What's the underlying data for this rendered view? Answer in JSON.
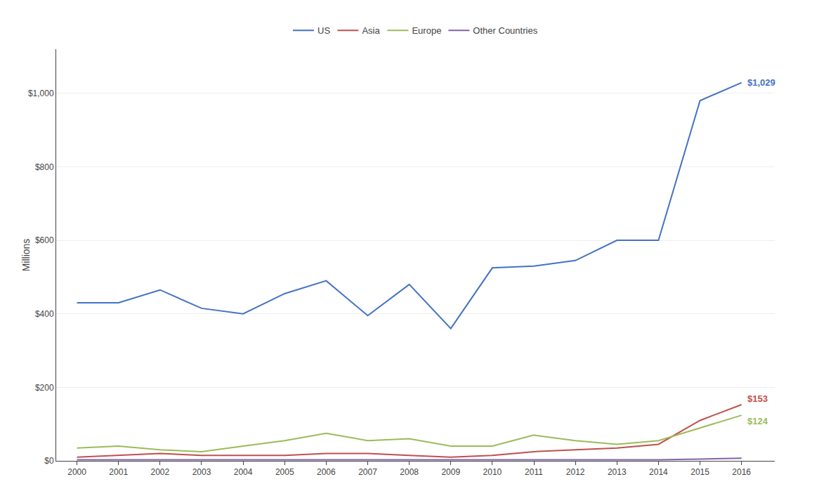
{
  "chart_data": {
    "type": "line",
    "y_label": "Millions",
    "x": [
      2000,
      2001,
      2002,
      2003,
      2004,
      2005,
      2006,
      2007,
      2008,
      2009,
      2010,
      2011,
      2012,
      2013,
      2014,
      2015,
      2016
    ],
    "series": [
      {
        "name": "US",
        "color": "#4472C4",
        "values": [
          430,
          430,
          465,
          415,
          400,
          455,
          490,
          395,
          480,
          360,
          525,
          530,
          545,
          600,
          600,
          980,
          1029
        ]
      },
      {
        "name": "Asia",
        "color": "#C0504D",
        "values": [
          10,
          15,
          20,
          15,
          15,
          15,
          20,
          20,
          15,
          10,
          15,
          25,
          30,
          35,
          45,
          110,
          153
        ]
      },
      {
        "name": "Europe",
        "color": "#9BBB59",
        "values": [
          35,
          40,
          30,
          25,
          40,
          55,
          75,
          55,
          60,
          40,
          40,
          70,
          55,
          45,
          55,
          90,
          124
        ]
      },
      {
        "name": "Other Countries",
        "color": "#8064A2",
        "values": [
          3,
          3,
          3,
          3,
          3,
          3,
          3,
          3,
          3,
          3,
          3,
          3,
          3,
          3,
          3,
          5,
          7
        ]
      }
    ],
    "annotations": [
      {
        "text": "$1,029",
        "x": 2016,
        "y": 1029,
        "color": "#4472C4"
      },
      {
        "text": "$153",
        "x": 2016,
        "y": 153,
        "color": "#C0504D"
      },
      {
        "text": "$124",
        "x": 2016,
        "y": 124,
        "color": "#9BBB59"
      }
    ],
    "xlim": [
      1999.5,
      2016.8
    ],
    "xticks": [
      2000,
      2001,
      2002,
      2003,
      2004,
      2005,
      2006,
      2007,
      2008,
      2009,
      2010,
      2011,
      2012,
      2013,
      2014,
      2015,
      2016
    ],
    "ylim": [
      0,
      1120
    ],
    "yticks": [
      {
        "value": 0,
        "label": "$0"
      },
      {
        "value": 200,
        "label": "$200"
      },
      {
        "value": 400,
        "label": "$400"
      },
      {
        "value": 600,
        "label": "$600"
      },
      {
        "value": 800,
        "label": "$800"
      },
      {
        "value": 1000,
        "label": "$1,000"
      }
    ],
    "grid": "y",
    "legend": "top"
  }
}
